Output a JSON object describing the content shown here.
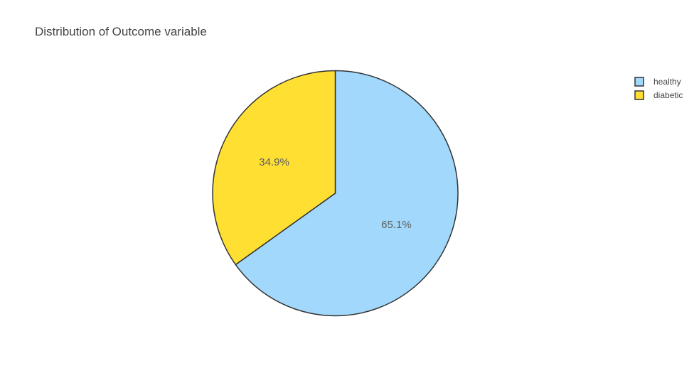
{
  "chart_data": {
    "type": "pie",
    "title": "Distribution of Outcome variable",
    "slices": [
      {
        "label": "healthy",
        "percent": 65.1,
        "percent_label": "65.1%",
        "color": "#a1d8fb"
      },
      {
        "label": "diabetic",
        "percent": 34.9,
        "percent_label": "34.9%",
        "color": "#ffdf32"
      }
    ],
    "direction": "clockwise",
    "start": "top",
    "slice_outline_color": "#333333",
    "legend": {
      "position": "top-right",
      "items": [
        "healthy",
        "diabetic"
      ]
    }
  }
}
